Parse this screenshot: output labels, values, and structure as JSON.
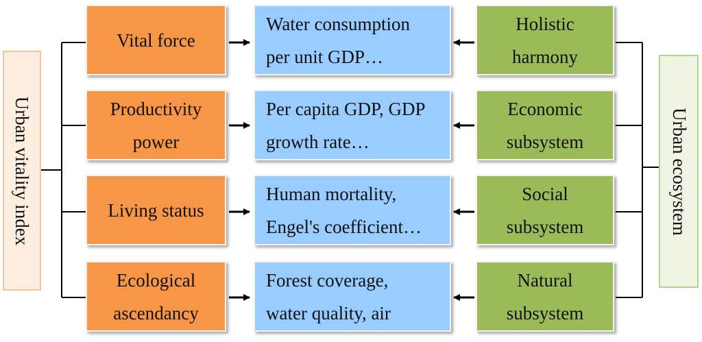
{
  "left_label": "Urban vitality index",
  "right_label": "Urban ecosystem",
  "rows": [
    {
      "left": [
        "Vital force"
      ],
      "middle": [
        "Water consumption",
        "per unit GDP…"
      ],
      "right": [
        "Holistic",
        "harmony"
      ]
    },
    {
      "left": [
        "Productivity",
        "power"
      ],
      "middle": [
        "Per capita GDP, GDP",
        "growth rate…"
      ],
      "right": [
        "Economic",
        "subsystem"
      ]
    },
    {
      "left": [
        "Living status"
      ],
      "middle": [
        "Human mortality,",
        "Engel's coefficient…"
      ],
      "right": [
        "Social",
        "subsystem"
      ]
    },
    {
      "left": [
        "Ecological",
        "ascendancy"
      ],
      "middle": [
        "Forest coverage,",
        "water quality, air"
      ],
      "right": [
        "Natural",
        "subsystem"
      ]
    }
  ]
}
